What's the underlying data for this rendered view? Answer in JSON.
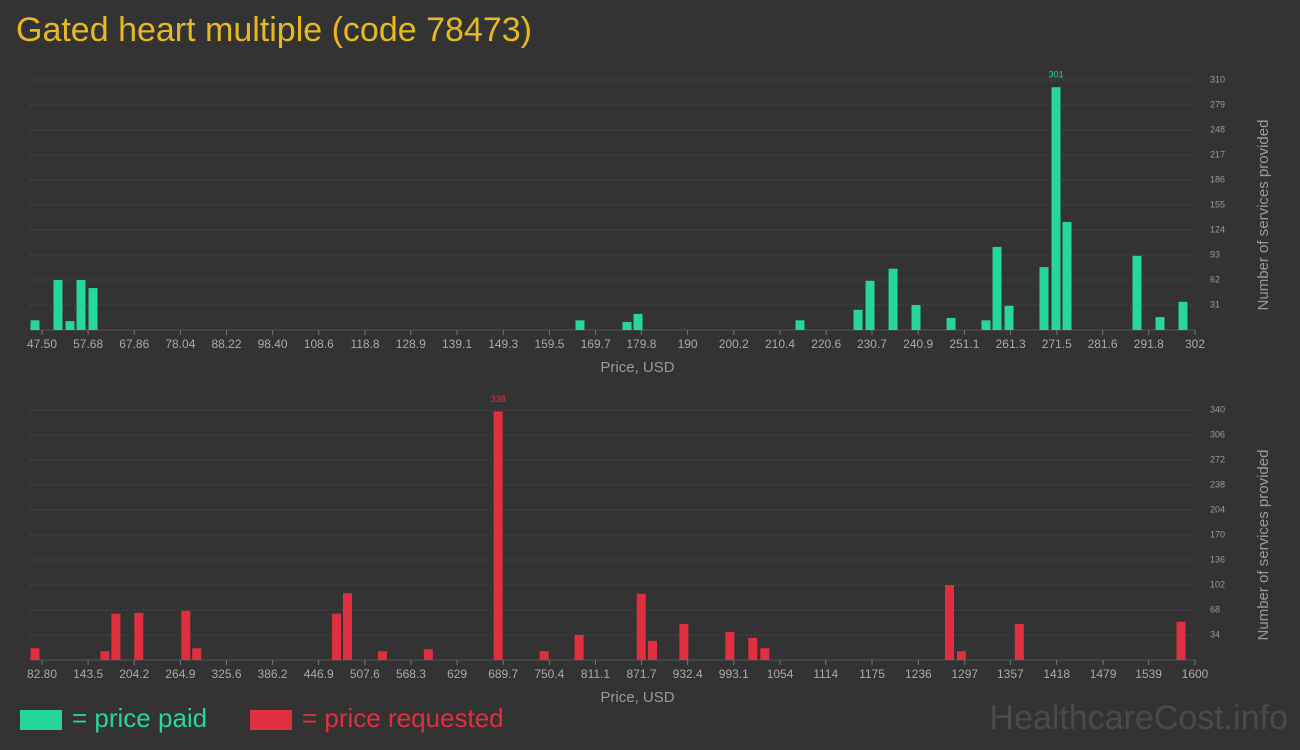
{
  "title": "Gated heart multiple (code 78473)",
  "watermark": "HealthcareCost.info",
  "chart_data": [
    {
      "type": "bar",
      "x_label": "Price, USD",
      "y_label": "Number of services provided",
      "x": [
        45.95,
        51.03,
        53.68,
        56.11,
        58.76,
        166.25,
        176.63,
        179.06,
        214.81,
        227.62,
        230.27,
        235.35,
        240.42,
        248.15,
        255.87,
        258.3,
        260.95,
        268.67,
        271.32,
        273.75,
        289.2,
        294.28,
        299.35
      ],
      "series": [
        {
          "name": "= price paid",
          "color": "#27d69c",
          "values": [
            12,
            62,
            11,
            62,
            52,
            12,
            10,
            20,
            12,
            25,
            61,
            76,
            31,
            15,
            12,
            103,
            30,
            78,
            301,
            134,
            92,
            16,
            35
          ]
        }
      ],
      "xlim": [
        44.85,
        302
      ],
      "xticks": [
        {
          "value": 47.5,
          "label": "47.50"
        },
        57.68,
        67.86,
        78.04,
        88.22,
        {
          "value": 98.4,
          "label": "98.40"
        },
        108.6,
        118.8,
        128.9,
        139.1,
        149.3,
        159.5,
        169.7,
        179.8,
        190,
        200.2,
        210.4,
        220.6,
        230.7,
        240.9,
        251.1,
        261.3,
        271.5,
        281.6,
        291.8,
        302
      ],
      "ylim": [
        0,
        310
      ],
      "yticks": [
        31,
        62,
        93,
        124,
        155,
        186,
        217,
        248,
        279,
        310
      ],
      "labeled_bar": 18,
      "grid": true
    },
    {
      "type": "bar",
      "x_label": "Price, USD",
      "y_label": "Number of services provided",
      "x": [
        73.6,
        165.6,
        180.0,
        210.2,
        272.0,
        286.4,
        470.3,
        484.8,
        530.7,
        591.2,
        683.1,
        743.6,
        789.5,
        871.3,
        886.1,
        927.4,
        987.9,
        1018.1,
        1033.9,
        1276.9,
        1292.6,
        1368.8,
        1581.6
      ],
      "series": [
        {
          "name": "= price requested",
          "color": "#e0303f",
          "values": [
            16,
            12,
            63,
            64,
            67,
            16,
            63,
            91,
            12,
            15,
            338,
            12,
            34,
            90,
            26,
            49,
            38,
            30,
            16,
            102,
            12,
            49,
            52
          ]
        }
      ],
      "xlim": [
        67,
        1600
      ],
      "xticks": [
        {
          "value": 82.8,
          "label": "82.80"
        },
        143.5,
        204.2,
        264.9,
        325.6,
        386.2,
        446.9,
        507.6,
        568.3,
        629,
        689.7,
        750.4,
        811.1,
        871.7,
        932.4,
        993.1,
        1054,
        1114,
        1175,
        1236,
        1297,
        1357,
        1418,
        1479,
        1539,
        1600
      ],
      "ylim": [
        0,
        340
      ],
      "yticks": [
        34,
        68,
        102,
        136,
        170,
        204,
        238,
        272,
        306,
        340
      ],
      "labeled_bar": 10,
      "grid": true
    }
  ]
}
